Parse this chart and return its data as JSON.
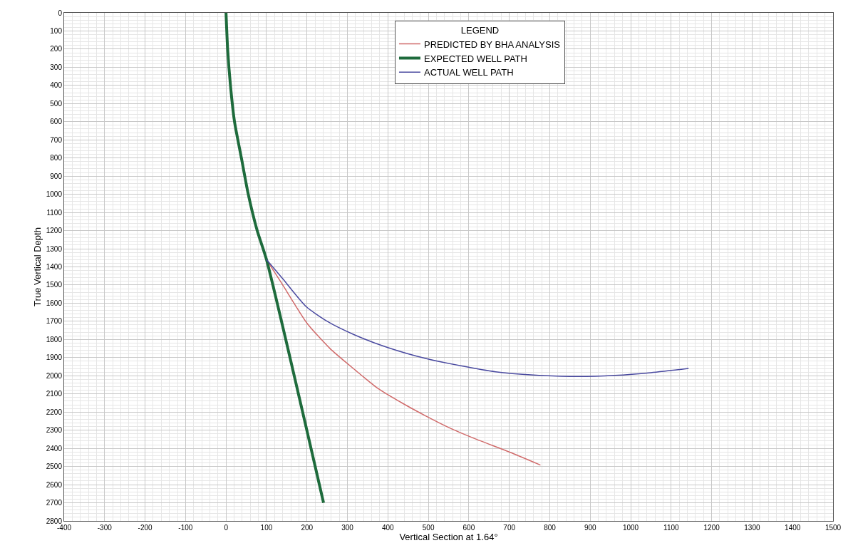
{
  "chart_data": {
    "type": "line",
    "xlabel": "Vertical Section at 1.64°",
    "ylabel": "True Vertical Depth",
    "legend_title": "LEGEND",
    "legend": "top right",
    "grid": true,
    "xlim": [
      -400,
      1500
    ],
    "xticks": [
      -400,
      -300,
      -200,
      -100,
      0,
      100,
      200,
      300,
      400,
      500,
      600,
      700,
      800,
      900,
      1000,
      1100,
      1200,
      1300,
      1400,
      1500
    ],
    "ylim": [
      2800,
      0
    ],
    "yticks": [
      0,
      100,
      200,
      300,
      400,
      500,
      600,
      700,
      800,
      900,
      1000,
      1100,
      1200,
      1300,
      1400,
      1500,
      1600,
      1700,
      1800,
      1900,
      2000,
      2100,
      2200,
      2300,
      2400,
      2500,
      2600,
      2700,
      2800
    ],
    "series": [
      {
        "name": "PREDICTED BY BHA ANALYSIS",
        "color": "#d06a6a",
        "x": [
          100,
          138,
          200,
          257,
          320,
          375,
          435,
          495,
          555,
          614,
          700,
          777
        ],
        "values": [
          1360,
          1492,
          1710,
          1850,
          1970,
          2069,
          2150,
          2223,
          2290,
          2346,
          2420,
          2492
        ]
      },
      {
        "name": "EXPECTED WELL PATH",
        "color": "#1e6b3c",
        "x": [
          0,
          4,
          11,
          21,
          38,
          55,
          77,
          100,
          241
        ],
        "values": [
          0,
          200,
          400,
          600,
          800,
          1000,
          1200,
          1360,
          2700
        ]
      },
      {
        "name": "ACTUAL WELL PATH",
        "color": "#4a4aa0",
        "x": [
          100,
          140,
          198,
          250,
          316,
          400,
          495,
          580,
          666,
          760,
          871,
          960,
          1050,
          1143
        ],
        "values": [
          1360,
          1465,
          1619,
          1700,
          1773,
          1845,
          1906,
          1945,
          1978,
          1996,
          2004,
          1998,
          1983,
          1960
        ]
      }
    ]
  }
}
